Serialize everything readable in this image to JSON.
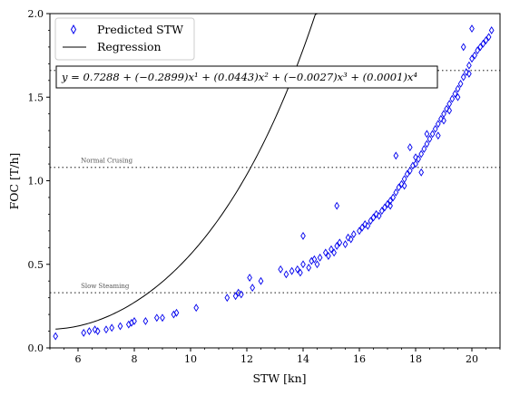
{
  "chart_data": {
    "type": "scatter",
    "xlabel": "STW [kn]",
    "ylabel": "FOC [T/h]",
    "xlim": [
      5,
      21
    ],
    "ylim": [
      0,
      2.0
    ],
    "x_ticks": [
      "6",
      "8",
      "10",
      "12",
      "14",
      "16",
      "18",
      "20"
    ],
    "y_ticks": [
      "0.0",
      "0.5",
      "1.0",
      "1.5",
      "2.0"
    ],
    "legend": {
      "position": "top-left",
      "scatter_label": "Predicted STW",
      "line_label": "Regression"
    },
    "equation": "y = 0.7288 + (−0.2899)x¹ + (0.0443)x² + (−0.0027)x³ + (0.0001)x⁴",
    "reference_lines": [
      {
        "name": "Slow Steaming",
        "y": 0.33,
        "label": "Slow Steaming"
      },
      {
        "name": "Normal Crusing",
        "y": 1.08,
        "label": "Normal Crusing"
      },
      {
        "name": "Upper",
        "y": 1.66,
        "label": ""
      }
    ],
    "regression": {
      "coefficients": [
        0.7288,
        -0.2899,
        0.0443,
        -0.0027,
        0.0001
      ],
      "x_range": [
        5.2,
        20.85
      ]
    },
    "series": [
      {
        "name": "Predicted STW",
        "marker": "diamond",
        "color": "#0000ee",
        "points": [
          [
            5.2,
            0.07
          ],
          [
            6.2,
            0.09
          ],
          [
            6.4,
            0.1
          ],
          [
            6.6,
            0.11
          ],
          [
            6.7,
            0.1
          ],
          [
            7.0,
            0.11
          ],
          [
            7.2,
            0.12
          ],
          [
            7.5,
            0.13
          ],
          [
            7.8,
            0.14
          ],
          [
            7.9,
            0.15
          ],
          [
            8.0,
            0.16
          ],
          [
            8.4,
            0.16
          ],
          [
            8.8,
            0.18
          ],
          [
            9.0,
            0.18
          ],
          [
            9.4,
            0.2
          ],
          [
            9.5,
            0.21
          ],
          [
            10.2,
            0.24
          ],
          [
            11.3,
            0.3
          ],
          [
            11.6,
            0.31
          ],
          [
            11.7,
            0.33
          ],
          [
            11.8,
            0.32
          ],
          [
            12.1,
            0.42
          ],
          [
            12.2,
            0.36
          ],
          [
            12.5,
            0.4
          ],
          [
            13.2,
            0.47
          ],
          [
            13.4,
            0.44
          ],
          [
            13.6,
            0.46
          ],
          [
            13.8,
            0.47
          ],
          [
            13.9,
            0.45
          ],
          [
            14.0,
            0.5
          ],
          [
            14.0,
            0.67
          ],
          [
            14.2,
            0.48
          ],
          [
            14.3,
            0.52
          ],
          [
            14.4,
            0.53
          ],
          [
            14.5,
            0.5
          ],
          [
            14.6,
            0.54
          ],
          [
            14.8,
            0.57
          ],
          [
            14.9,
            0.55
          ],
          [
            15.0,
            0.59
          ],
          [
            15.1,
            0.57
          ],
          [
            15.2,
            0.61
          ],
          [
            15.2,
            0.85
          ],
          [
            15.3,
            0.63
          ],
          [
            15.5,
            0.62
          ],
          [
            15.6,
            0.66
          ],
          [
            15.7,
            0.65
          ],
          [
            15.8,
            0.68
          ],
          [
            16.0,
            0.7
          ],
          [
            16.1,
            0.72
          ],
          [
            16.2,
            0.74
          ],
          [
            16.3,
            0.73
          ],
          [
            16.4,
            0.76
          ],
          [
            16.5,
            0.78
          ],
          [
            16.6,
            0.8
          ],
          [
            16.7,
            0.79
          ],
          [
            16.8,
            0.82
          ],
          [
            16.9,
            0.84
          ],
          [
            17.0,
            0.86
          ],
          [
            17.1,
            0.88
          ],
          [
            17.1,
            0.85
          ],
          [
            17.2,
            0.9
          ],
          [
            17.3,
            0.93
          ],
          [
            17.3,
            1.15
          ],
          [
            17.4,
            0.96
          ],
          [
            17.5,
            0.98
          ],
          [
            17.6,
            1.01
          ],
          [
            17.6,
            0.97
          ],
          [
            17.7,
            1.04
          ],
          [
            17.8,
            1.06
          ],
          [
            17.8,
            1.2
          ],
          [
            17.9,
            1.09
          ],
          [
            18.0,
            1.1
          ],
          [
            18.0,
            1.14
          ],
          [
            18.1,
            1.13
          ],
          [
            18.2,
            1.16
          ],
          [
            18.2,
            1.05
          ],
          [
            18.3,
            1.19
          ],
          [
            18.4,
            1.22
          ],
          [
            18.4,
            1.28
          ],
          [
            18.5,
            1.25
          ],
          [
            18.6,
            1.28
          ],
          [
            18.7,
            1.31
          ],
          [
            18.8,
            1.34
          ],
          [
            18.8,
            1.27
          ],
          [
            18.9,
            1.37
          ],
          [
            19.0,
            1.4
          ],
          [
            19.0,
            1.36
          ],
          [
            19.1,
            1.43
          ],
          [
            19.2,
            1.46
          ],
          [
            19.2,
            1.42
          ],
          [
            19.3,
            1.49
          ],
          [
            19.4,
            1.52
          ],
          [
            19.5,
            1.55
          ],
          [
            19.5,
            1.5
          ],
          [
            19.6,
            1.58
          ],
          [
            19.7,
            1.62
          ],
          [
            19.7,
            1.8
          ],
          [
            19.8,
            1.65
          ],
          [
            19.9,
            1.69
          ],
          [
            19.9,
            1.64
          ],
          [
            20.0,
            1.73
          ],
          [
            20.1,
            1.75
          ],
          [
            20.0,
            1.91
          ],
          [
            20.2,
            1.78
          ],
          [
            20.3,
            1.8
          ],
          [
            20.4,
            1.82
          ],
          [
            20.5,
            1.84
          ],
          [
            20.6,
            1.86
          ],
          [
            20.7,
            1.9
          ]
        ]
      }
    ]
  }
}
